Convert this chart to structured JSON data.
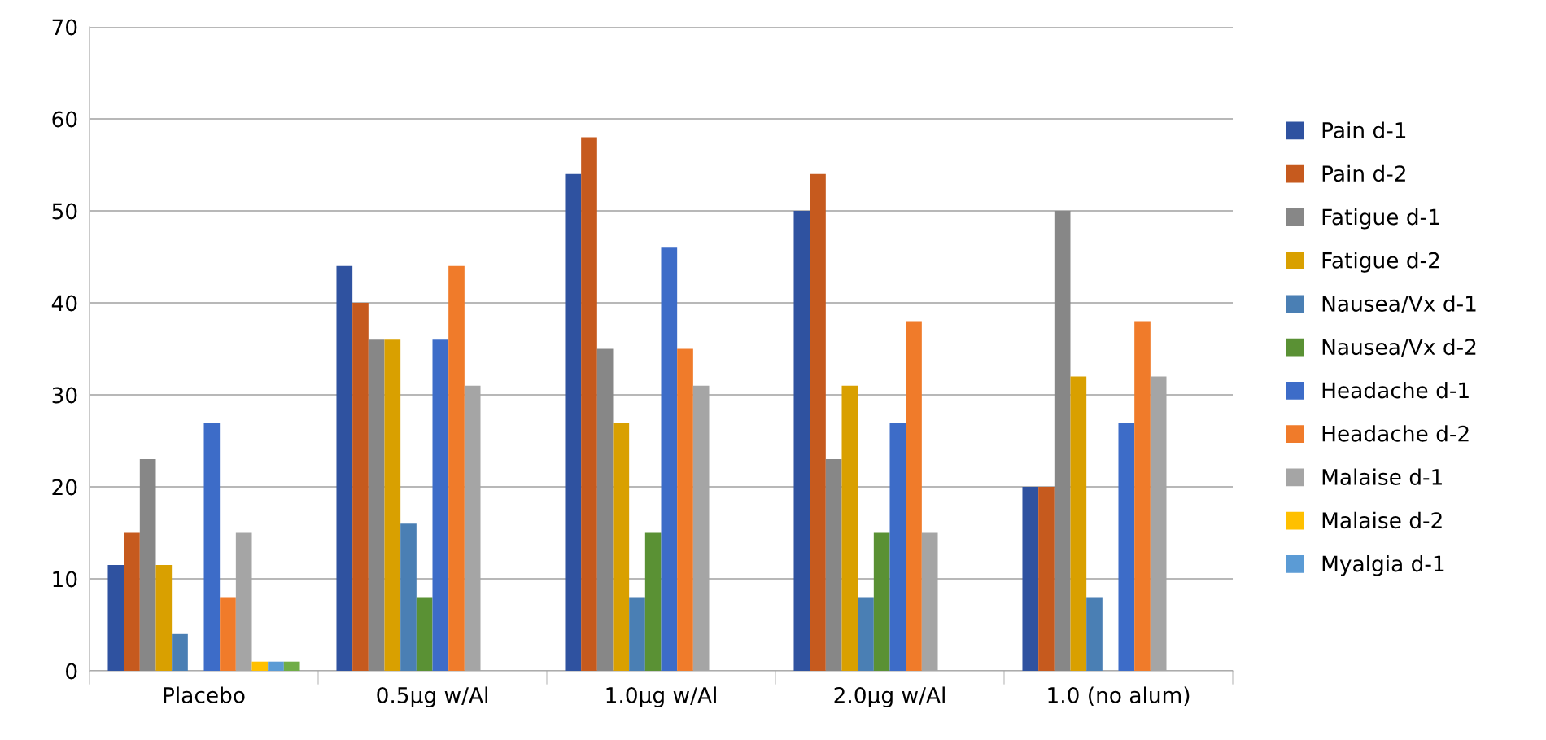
{
  "chart_data": {
    "type": "bar",
    "categories": [
      "Placebo",
      "0.5µg w/Al",
      "1.0µg w/Al",
      "2.0µg w/Al",
      "1.0 (no alum)"
    ],
    "series": [
      {
        "name": "Pain d-1",
        "color": "#2f52a0",
        "values": [
          11.5,
          44,
          54,
          50,
          20
        ]
      },
      {
        "name": "Pain d-2",
        "color": "#c65a1e",
        "values": [
          15,
          40,
          58,
          54,
          20
        ]
      },
      {
        "name": "Fatigue d-1",
        "color": "#878787",
        "values": [
          23,
          36,
          35,
          23,
          50
        ]
      },
      {
        "name": "Fatigue d-2",
        "color": "#d9a000",
        "values": [
          11.5,
          36,
          27,
          31,
          32
        ]
      },
      {
        "name": "Nausea/Vx d-1",
        "color": "#4a7fb4",
        "values": [
          4,
          16,
          8,
          8,
          8
        ]
      },
      {
        "name": "Nausea/Vx d-2",
        "color": "#5a9134",
        "values": [
          0,
          8,
          15,
          15,
          0
        ]
      },
      {
        "name": "Headache d-1",
        "color": "#3d6cc8",
        "values": [
          27,
          36,
          46,
          27,
          27
        ]
      },
      {
        "name": "Headache d-2",
        "color": "#f07b2a",
        "values": [
          8,
          44,
          35,
          38,
          38
        ]
      },
      {
        "name": "Malaise d-1",
        "color": "#a5a5a5",
        "values": [
          15,
          31,
          31,
          15,
          32
        ]
      },
      {
        "name": "Malaise d-2",
        "color": "#ffc000",
        "values": [
          1,
          0,
          0,
          0,
          0
        ]
      },
      {
        "name": "Myalgia d-1",
        "color": "#5b9bd5",
        "values": [
          1,
          0,
          0,
          0,
          0
        ]
      },
      {
        "color": "#70ad47",
        "values": [
          1,
          0,
          0,
          0,
          0
        ]
      }
    ],
    "ylim": [
      0,
      70
    ],
    "yticks": [
      0,
      10,
      20,
      30,
      40,
      50,
      60,
      70
    ],
    "grid": "y",
    "legend": "right"
  }
}
